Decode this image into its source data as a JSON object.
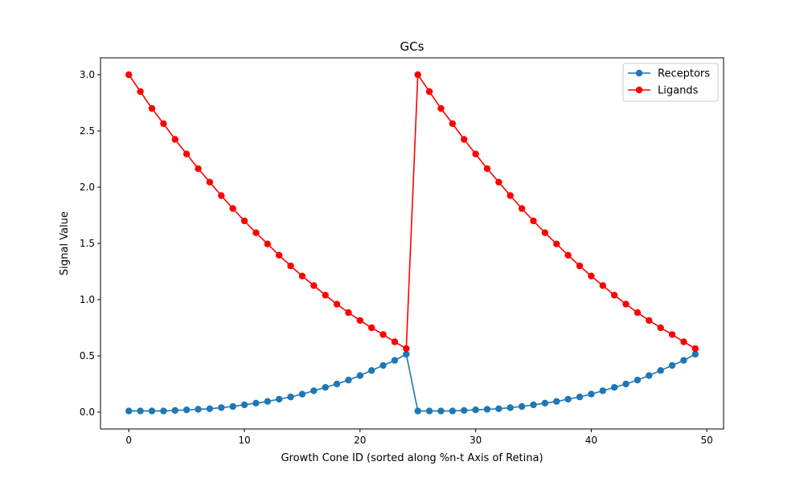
{
  "chart_data": {
    "type": "line",
    "title": "GCs",
    "xlabel": "Growth Cone ID (sorted along %n-t Axis of Retina)",
    "ylabel": "Signal Value",
    "xlim": [
      -2.45,
      51.45
    ],
    "ylim": [
      -0.15,
      3.15
    ],
    "xticks": [
      0,
      10,
      20,
      30,
      40,
      50
    ],
    "xtick_labels": [
      "0",
      "10",
      "20",
      "30",
      "40",
      "50"
    ],
    "yticks": [
      0.0,
      0.5,
      1.0,
      1.5,
      2.0,
      2.5,
      3.0
    ],
    "ytick_labels": [
      "0.0",
      "0.5",
      "1.0",
      "1.5",
      "2.0",
      "2.5",
      "3.0"
    ],
    "grid": false,
    "legend_position": "top-right",
    "x": [
      0,
      1,
      2,
      3,
      4,
      5,
      6,
      7,
      8,
      9,
      10,
      11,
      12,
      13,
      14,
      15,
      16,
      17,
      18,
      19,
      20,
      21,
      22,
      23,
      24,
      25,
      26,
      27,
      28,
      29,
      30,
      31,
      32,
      33,
      34,
      35,
      36,
      37,
      38,
      39,
      40,
      41,
      42,
      43,
      44,
      45,
      46,
      47,
      48,
      49
    ],
    "series": [
      {
        "name": "Receptors",
        "color": "#1f77b4",
        "marker": "circle",
        "values": [
          0.01,
          0.01,
          0.01,
          0.01,
          0.015,
          0.02,
          0.025,
          0.03,
          0.04,
          0.05,
          0.065,
          0.08,
          0.095,
          0.115,
          0.135,
          0.16,
          0.19,
          0.22,
          0.25,
          0.285,
          0.325,
          0.37,
          0.415,
          0.46,
          0.515,
          0.01,
          0.01,
          0.01,
          0.01,
          0.015,
          0.02,
          0.025,
          0.03,
          0.04,
          0.05,
          0.065,
          0.08,
          0.095,
          0.115,
          0.135,
          0.16,
          0.19,
          0.22,
          0.25,
          0.285,
          0.325,
          0.37,
          0.415,
          0.46,
          0.515
        ]
      },
      {
        "name": "Ligands",
        "color": "#ff0000",
        "marker": "circle",
        "values": [
          3.0,
          2.85,
          2.7,
          2.565,
          2.425,
          2.295,
          2.165,
          2.045,
          1.925,
          1.81,
          1.7,
          1.595,
          1.495,
          1.395,
          1.3,
          1.21,
          1.125,
          1.04,
          0.96,
          0.885,
          0.815,
          0.75,
          0.69,
          0.625,
          0.565,
          3.0,
          2.85,
          2.7,
          2.565,
          2.425,
          2.295,
          2.165,
          2.045,
          1.925,
          1.81,
          1.7,
          1.595,
          1.495,
          1.395,
          1.3,
          1.21,
          1.125,
          1.04,
          0.96,
          0.885,
          0.815,
          0.75,
          0.69,
          0.625,
          0.565
        ]
      }
    ]
  }
}
